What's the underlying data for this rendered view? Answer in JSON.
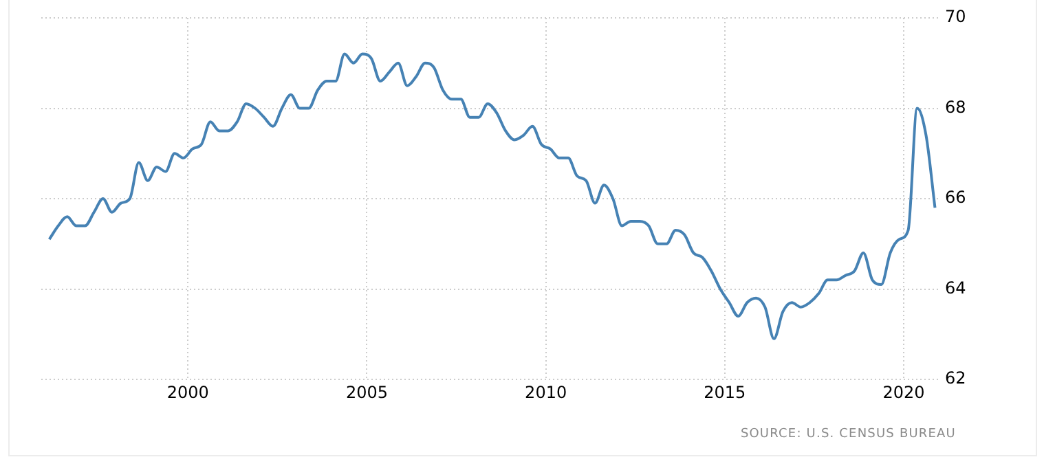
{
  "chart_data": {
    "type": "line",
    "x": [
      1996.125,
      1996.375,
      1996.625,
      1996.875,
      1997.125,
      1997.375,
      1997.625,
      1997.875,
      1998.125,
      1998.375,
      1998.625,
      1998.875,
      1999.125,
      1999.375,
      1999.625,
      1999.875,
      2000.125,
      2000.375,
      2000.625,
      2000.875,
      2001.125,
      2001.375,
      2001.625,
      2001.875,
      2002.125,
      2002.375,
      2002.625,
      2002.875,
      2003.125,
      2003.375,
      2003.625,
      2003.875,
      2004.125,
      2004.375,
      2004.625,
      2004.875,
      2005.125,
      2005.375,
      2005.625,
      2005.875,
      2006.125,
      2006.375,
      2006.625,
      2006.875,
      2007.125,
      2007.375,
      2007.625,
      2007.875,
      2008.125,
      2008.375,
      2008.625,
      2008.875,
      2009.125,
      2009.375,
      2009.625,
      2009.875,
      2010.125,
      2010.375,
      2010.625,
      2010.875,
      2011.125,
      2011.375,
      2011.625,
      2011.875,
      2012.125,
      2012.375,
      2012.625,
      2012.875,
      2013.125,
      2013.375,
      2013.625,
      2013.875,
      2014.125,
      2014.375,
      2014.625,
      2014.875,
      2015.125,
      2015.375,
      2015.625,
      2015.875,
      2016.125,
      2016.375,
      2016.625,
      2016.875,
      2017.125,
      2017.375,
      2017.625,
      2017.875,
      2018.125,
      2018.375,
      2018.625,
      2018.875,
      2019.125,
      2019.375,
      2019.625,
      2019.875,
      2020.125,
      2020.375,
      2020.625,
      2020.875
    ],
    "series": [
      {
        "color": "#4682b4",
        "values": [
          65.1,
          65.4,
          65.6,
          65.4,
          65.4,
          65.7,
          66.0,
          65.7,
          65.9,
          66.0,
          66.8,
          66.4,
          66.7,
          66.6,
          67.0,
          66.9,
          67.1,
          67.2,
          67.7,
          67.5,
          67.5,
          67.7,
          68.1,
          68.0,
          67.8,
          67.6,
          68.0,
          68.3,
          68.0,
          68.0,
          68.4,
          68.6,
          68.6,
          69.2,
          69.0,
          69.2,
          69.1,
          68.6,
          68.8,
          69.0,
          68.5,
          68.7,
          69.0,
          68.9,
          68.4,
          68.2,
          68.2,
          67.8,
          67.8,
          68.1,
          67.9,
          67.5,
          67.3,
          67.4,
          67.6,
          67.2,
          67.1,
          66.9,
          66.9,
          66.5,
          66.4,
          65.9,
          66.3,
          66.0,
          65.4,
          65.5,
          65.5,
          65.4,
          65.0,
          65.0,
          65.3,
          65.2,
          64.8,
          64.7,
          64.4,
          64.0,
          63.7,
          63.4,
          63.7,
          63.8,
          63.6,
          62.9,
          63.5,
          63.7,
          63.6,
          63.7,
          63.9,
          64.2,
          64.2,
          64.3,
          64.4,
          64.8,
          64.2,
          64.1,
          64.8,
          65.1,
          65.3,
          68.0,
          67.4,
          65.8
        ]
      }
    ],
    "xlim": [
      1995.9,
      2021.0
    ],
    "xticks": [
      2000,
      2005,
      2010,
      2015,
      2020
    ],
    "ylim": [
      62,
      70
    ],
    "yticks": [
      62,
      64,
      66,
      68,
      70
    ],
    "grid": true,
    "legend": false,
    "marker": "none",
    "line_style": "solid",
    "annotations": [
      "SOURCE: U.S. CENSUS BUREAU"
    ]
  }
}
